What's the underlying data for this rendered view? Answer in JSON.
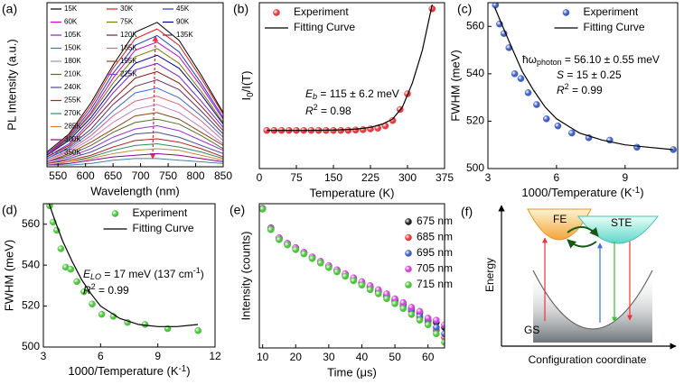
{
  "chart_data": [
    {
      "type": "line",
      "panel_label": "(a)",
      "xlabel": "Wavelength (nm)",
      "ylabel": "PL Intensity (a.u.)",
      "xlim": [
        530,
        850
      ],
      "xticks": [
        550,
        600,
        650,
        700,
        750,
        800,
        850
      ],
      "ylim": [
        0,
        1
      ],
      "legend": "upper left",
      "x": [
        530,
        570,
        610,
        650,
        690,
        730,
        770,
        810,
        850
      ],
      "series": [
        {
          "name": "15K",
          "color": "#000000",
          "style": "line",
          "values": [
            0.09,
            0.2,
            0.39,
            0.62,
            0.82,
            0.88,
            0.77,
            0.56,
            0.33
          ]
        },
        {
          "name": "30K",
          "color": "#e41a1c",
          "style": "line",
          "values": [
            0.08,
            0.19,
            0.37,
            0.6,
            0.78,
            0.84,
            0.74,
            0.54,
            0.32
          ]
        },
        {
          "name": "45K",
          "color": "#1f3fbf",
          "style": "line",
          "values": [
            0.08,
            0.18,
            0.35,
            0.57,
            0.74,
            0.8,
            0.7,
            0.51,
            0.3
          ]
        },
        {
          "name": "60K",
          "color": "#d000d0",
          "style": "line",
          "values": [
            0.08,
            0.17,
            0.33,
            0.54,
            0.71,
            0.76,
            0.67,
            0.49,
            0.29
          ]
        },
        {
          "name": "75K",
          "color": "#7a7a00",
          "style": "line",
          "values": [
            0.07,
            0.17,
            0.32,
            0.51,
            0.67,
            0.72,
            0.63,
            0.46,
            0.27
          ]
        },
        {
          "name": "90K",
          "color": "#00008b",
          "style": "line",
          "values": [
            0.07,
            0.16,
            0.3,
            0.48,
            0.63,
            0.68,
            0.6,
            0.44,
            0.26
          ]
        },
        {
          "name": "105K",
          "color": "#7d26cd",
          "style": "line",
          "values": [
            0.06,
            0.14,
            0.28,
            0.45,
            0.59,
            0.63,
            0.55,
            0.4,
            0.24
          ]
        },
        {
          "name": "120K",
          "color": "#8b1a1a",
          "style": "line",
          "values": [
            0.06,
            0.13,
            0.26,
            0.41,
            0.54,
            0.58,
            0.51,
            0.37,
            0.22
          ]
        },
        {
          "name": "135K",
          "color": "#6b2e5e",
          "style": "line",
          "values": [
            0.05,
            0.12,
            0.23,
            0.38,
            0.49,
            0.53,
            0.47,
            0.34,
            0.2
          ]
        },
        {
          "name": "150K",
          "color": "#3d6bd6",
          "style": "line",
          "values": [
            0.05,
            0.11,
            0.21,
            0.34,
            0.45,
            0.48,
            0.42,
            0.31,
            0.18
          ]
        },
        {
          "name": "165K",
          "color": "#e06080",
          "style": "line",
          "values": [
            0.04,
            0.1,
            0.19,
            0.31,
            0.4,
            0.43,
            0.38,
            0.28,
            0.16
          ]
        },
        {
          "name": "180K",
          "color": "#c080c0",
          "style": "line",
          "values": [
            0.04,
            0.09,
            0.17,
            0.27,
            0.35,
            0.38,
            0.33,
            0.24,
            0.14
          ]
        },
        {
          "name": "195K",
          "color": "#8b4513",
          "style": "line",
          "values": [
            0.03,
            0.08,
            0.15,
            0.23,
            0.31,
            0.33,
            0.29,
            0.21,
            0.13
          ]
        },
        {
          "name": "210K",
          "color": "#556b2f",
          "style": "line",
          "values": [
            0.03,
            0.07,
            0.13,
            0.21,
            0.27,
            0.29,
            0.26,
            0.19,
            0.11
          ]
        },
        {
          "name": "225K",
          "color": "#9932cc",
          "style": "line",
          "values": [
            0.03,
            0.06,
            0.11,
            0.18,
            0.23,
            0.25,
            0.22,
            0.16,
            0.1
          ]
        },
        {
          "name": "240K",
          "color": "#4b4b9b",
          "style": "line",
          "values": [
            0.02,
            0.05,
            0.09,
            0.15,
            0.2,
            0.21,
            0.18,
            0.13,
            0.08
          ]
        },
        {
          "name": "255K",
          "color": "#b22222",
          "style": "line",
          "values": [
            0.02,
            0.04,
            0.07,
            0.12,
            0.16,
            0.17,
            0.15,
            0.11,
            0.06
          ]
        },
        {
          "name": "270K",
          "color": "#2e8b57",
          "style": "line",
          "values": [
            0.01,
            0.03,
            0.06,
            0.1,
            0.13,
            0.14,
            0.12,
            0.09,
            0.05
          ]
        },
        {
          "name": "285K",
          "color": "#cd853f",
          "style": "line",
          "values": [
            0.01,
            0.03,
            0.05,
            0.08,
            0.1,
            0.11,
            0.1,
            0.07,
            0.04
          ]
        },
        {
          "name": "300K",
          "color": "#8b008b",
          "style": "line",
          "values": [
            0.01,
            0.02,
            0.04,
            0.06,
            0.07,
            0.08,
            0.07,
            0.05,
            0.03
          ]
        },
        {
          "name": "350K",
          "color": "#4682b4",
          "style": "line",
          "values": [
            0.01,
            0.01,
            0.02,
            0.04,
            0.05,
            0.05,
            0.04,
            0.03,
            0.02
          ]
        }
      ]
    },
    {
      "type": "scatter",
      "panel_label": "(b)",
      "xlabel": "Temperature (K)",
      "ylabel": [
        {
          "t": "I"
        },
        {
          "t": "0",
          "sub": true
        },
        {
          "t": "/I(T)"
        }
      ],
      "xlim": [
        0,
        375
      ],
      "xticks": [
        0,
        75,
        150,
        225,
        300,
        375
      ],
      "ylim": [
        0,
        4.35
      ],
      "legend": "upper left",
      "series": [
        {
          "name": "Experiment",
          "color": "#e8383d",
          "style": "markers",
          "x": [
            15,
            30,
            45,
            60,
            75,
            90,
            105,
            120,
            135,
            150,
            165,
            180,
            195,
            210,
            225,
            240,
            255,
            270,
            285,
            300,
            350
          ],
          "values": [
            1,
            1,
            1,
            1,
            1,
            1,
            1,
            1,
            1,
            1,
            1,
            1,
            1.01,
            1.02,
            1.04,
            1.06,
            1.12,
            1.26,
            1.55,
            1.96,
            4.19
          ]
        },
        {
          "name": "Fitting Curve",
          "color": "#000000",
          "style": "line",
          "x": [
            15,
            50,
            100,
            150,
            175,
            200,
            225,
            250,
            270,
            290,
            310,
            330,
            350
          ],
          "values": [
            1,
            1,
            1,
            1.01,
            1.02,
            1.04,
            1.08,
            1.17,
            1.3,
            1.62,
            2.25,
            3.1,
            4.3
          ]
        }
      ],
      "annotations": [
        [
          {
            "t": "E",
            "i": true
          },
          {
            "t": "b",
            "sub": true,
            "i": true
          },
          {
            "t": " = 115 ± 6.2 meV"
          }
        ],
        [
          {
            "t": "R",
            "i": true
          },
          {
            "t": "2",
            "sup": true
          },
          {
            "t": " = 0.98"
          }
        ]
      ]
    },
    {
      "type": "scatter",
      "panel_label": "(c)",
      "ylabel": "FWHM (meV)",
      "xlabel": [
        {
          "t": "1000/Temperature (K"
        },
        {
          "t": "-1",
          "sup": true
        },
        {
          "t": ")"
        }
      ],
      "xlim": [
        3,
        11.3
      ],
      "xticks": [
        3,
        6,
        9
      ],
      "ylim": [
        500,
        570
      ],
      "yticks": [
        500,
        520,
        540,
        560
      ],
      "legend": "upper center",
      "series": [
        {
          "name": "Experiment",
          "color": "#3f5fc4",
          "style": "markers",
          "x": [
            3.33,
            3.51,
            3.7,
            3.92,
            4.17,
            4.44,
            4.76,
            5.13,
            5.56,
            6.06,
            6.67,
            7.41,
            8.33,
            9.52,
            11.11
          ],
          "values": [
            569,
            561,
            557,
            551,
            540,
            538,
            532,
            527,
            521,
            518,
            515,
            513,
            512,
            509,
            508
          ]
        },
        {
          "name": "Fitting Curve",
          "color": "#000000",
          "style": "line",
          "x": [
            3.3,
            3.6,
            4,
            4.5,
            5,
            5.5,
            6,
            7,
            8,
            9,
            10,
            11.1
          ],
          "values": [
            568,
            561,
            552,
            541,
            533,
            526,
            521,
            515,
            512,
            510,
            509,
            508
          ]
        }
      ],
      "annotations": [
        [
          {
            "t": "ħω"
          },
          {
            "t": "photon",
            "sub": true
          },
          {
            "t": " = 56.10 ± 0.55 meV"
          }
        ],
        [
          {
            "t": "S",
            "i": true
          },
          {
            "t": " = 15 ± 0.25"
          }
        ],
        [
          {
            "t": "R",
            "i": true
          },
          {
            "t": "2",
            "sup": true
          },
          {
            "t": " = 0.99"
          }
        ]
      ]
    },
    {
      "type": "scatter",
      "panel_label": "(d)",
      "ylabel": "FWHM (meV)",
      "xlabel": [
        {
          "t": "1000/Temperature (K"
        },
        {
          "t": "-1",
          "sup": true
        },
        {
          "t": ")"
        }
      ],
      "xlim": [
        3,
        12
      ],
      "xticks": [
        3,
        6,
        9,
        12
      ],
      "ylim": [
        500,
        570
      ],
      "yticks": [
        500,
        520,
        540,
        560
      ],
      "legend": "upper center",
      "series": [
        {
          "name": "Experiment",
          "color": "#4cc43c",
          "style": "markers",
          "x": [
            3.33,
            3.51,
            3.7,
            3.92,
            4.17,
            4.44,
            4.76,
            5.13,
            5.56,
            6.06,
            6.67,
            7.41,
            8.33,
            9.52,
            11.11
          ],
          "values": [
            569,
            561,
            557,
            548,
            539,
            538,
            532,
            527,
            521,
            516,
            515,
            512,
            511,
            509,
            508
          ]
        },
        {
          "name": "Fitting Curve",
          "color": "#000000",
          "style": "line",
          "x": [
            3.3,
            3.6,
            4,
            4.5,
            5,
            5.5,
            6,
            7,
            8,
            9,
            10,
            11.1
          ],
          "values": [
            570,
            562,
            552,
            542,
            533,
            526,
            520,
            514,
            511,
            510,
            510,
            511
          ]
        }
      ],
      "annotations": [
        [
          {
            "t": "E",
            "i": true
          },
          {
            "t": "LO",
            "sub": true,
            "i": true
          },
          {
            "t": " = 17 meV (137 cm"
          },
          {
            "t": "-1",
            "sup": true
          },
          {
            "t": ")"
          }
        ],
        [
          {
            "t": "R",
            "i": true
          },
          {
            "t": "2",
            "sup": true
          },
          {
            "t": " = 0.99"
          }
        ]
      ]
    },
    {
      "type": "scatter",
      "panel_label": "(e)",
      "xlabel": "Time (μs)",
      "ylabel": "Intensity (counts)",
      "xlim": [
        9,
        65
      ],
      "xticks": [
        10,
        20,
        30,
        40,
        50,
        60
      ],
      "ylim": [
        0.004,
        1.2
      ],
      "ylog": true,
      "legend": "upper right",
      "x": [
        10,
        12.5,
        15,
        17.5,
        20,
        22.5,
        25,
        27.5,
        30,
        32.5,
        35,
        37.5,
        40,
        42.5,
        45,
        47.5,
        50,
        52.5,
        55,
        57.5,
        60,
        62.5,
        65
      ],
      "series": [
        {
          "name": "675 nm",
          "color": "#222222",
          "style": "markers",
          "values": [
            1.0,
            0.46,
            0.31,
            0.25,
            0.21,
            0.175,
            0.145,
            0.122,
            0.102,
            0.087,
            0.073,
            0.062,
            0.053,
            0.045,
            0.038,
            0.032,
            0.027,
            0.022,
            0.019,
            0.016,
            0.012,
            0.011,
            0.009
          ]
        },
        {
          "name": "685 nm",
          "color": "#e8383d",
          "style": "markers",
          "values": [
            0.98,
            0.44,
            0.3,
            0.24,
            0.2,
            0.17,
            0.14,
            0.118,
            0.099,
            0.084,
            0.07,
            0.06,
            0.05,
            0.043,
            0.036,
            0.03,
            0.025,
            0.021,
            0.017,
            0.013,
            0.011,
            0.008,
            0.006
          ]
        },
        {
          "name": "695 nm",
          "color": "#3f5fc4",
          "style": "markers",
          "values": [
            0.99,
            0.45,
            0.3,
            0.245,
            0.205,
            0.172,
            0.143,
            0.12,
            0.1,
            0.085,
            0.072,
            0.061,
            0.052,
            0.044,
            0.037,
            0.031,
            0.026,
            0.021,
            0.018,
            0.014,
            0.012,
            0.009,
            0.007
          ]
        },
        {
          "name": "705 nm",
          "color": "#d045d8",
          "style": "markers",
          "values": [
            0.99,
            0.45,
            0.31,
            0.25,
            0.21,
            0.174,
            0.146,
            0.123,
            0.104,
            0.088,
            0.075,
            0.064,
            0.055,
            0.047,
            0.04,
            0.034,
            0.028,
            0.024,
            0.02,
            0.017,
            0.013,
            0.012,
            0.01
          ]
        },
        {
          "name": "715 nm",
          "color": "#4cc43c",
          "style": "markers",
          "values": [
            0.97,
            0.43,
            0.29,
            0.235,
            0.195,
            0.165,
            0.137,
            0.115,
            0.096,
            0.081,
            0.068,
            0.057,
            0.048,
            0.04,
            0.034,
            0.028,
            0.023,
            0.019,
            0.015,
            0.012,
            0.01,
            0.007,
            0.005
          ]
        }
      ]
    }
  ],
  "diagram": {
    "panel_label": "(f)",
    "y_axis": "Energy",
    "x_axis": "Configuration coordinate",
    "states": [
      "FE",
      "STE",
      "GS"
    ]
  }
}
